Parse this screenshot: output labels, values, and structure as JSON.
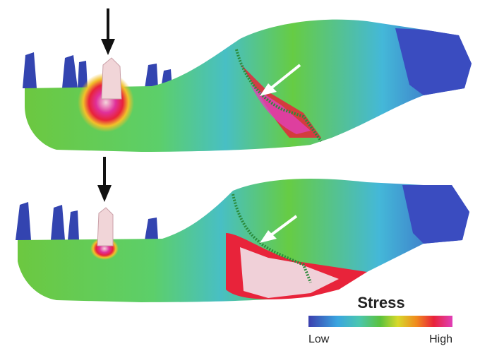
{
  "legend": {
    "title": "Stress",
    "low": "Low",
    "high": "High"
  }
}
